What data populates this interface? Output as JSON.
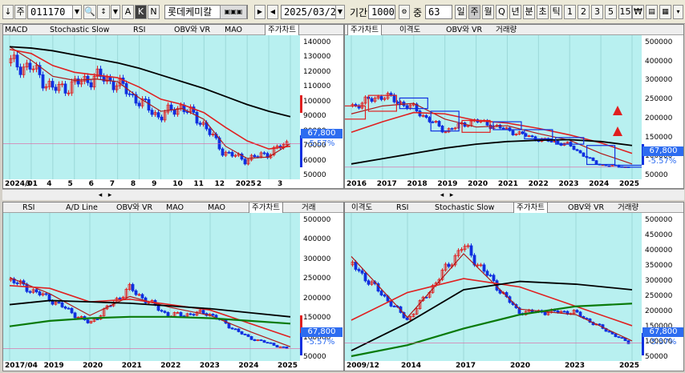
{
  "toolbar": {
    "arrow_label": "↓",
    "ju_label": "주",
    "code": "011170",
    "search_icon": "magnifier-icon",
    "letters": [
      "A",
      "K",
      "N"
    ],
    "name": "롯데케미칼",
    "date": "2025/03/28",
    "period_label": "기간",
    "period": "1000",
    "weight_label": "중",
    "weight": "63",
    "timeframes": [
      "일",
      "주",
      "월",
      "Q",
      "년",
      "분",
      "초",
      "틱",
      "1",
      "2",
      "3",
      "5",
      "15"
    ],
    "currency_icon": "₩"
  },
  "panels": [
    {
      "id": "p1",
      "tabs": [
        "MACD",
        "Stochastic Slow",
        "RSI",
        "OBV와 VR",
        "MAO",
        "주가차트"
      ],
      "active_tab": "주가차트",
      "yticks": [
        "140000",
        "130000",
        "120000",
        "110000",
        "100000",
        "90000",
        "80000",
        "70000",
        "60000",
        "50000"
      ],
      "xticks": [
        "2024/01",
        "3",
        "4",
        "5",
        "6",
        "7",
        "8",
        "9",
        "10",
        "11",
        "12",
        "2025",
        "2",
        "3"
      ],
      "price": "67,800",
      "pct": "-5.57%",
      "ghost": "77,800",
      "chart_data": {
        "type": "candlestick",
        "ylim": [
          45000,
          145000
        ],
        "x": [
          "2024/01",
          "3",
          "4",
          "5",
          "6",
          "7",
          "8",
          "9",
          "10",
          "11",
          "12",
          "2025",
          "2",
          "3"
        ],
        "close": [
          128000,
          124000,
          108000,
          112000,
          118000,
          113000,
          100000,
          88000,
          96000,
          84000,
          62000,
          56000,
          60000,
          67800
        ],
        "series": [
          {
            "values": [
              140000,
              130000,
              118000,
              115000,
              116000,
              114000,
              102000,
              92000,
              94000,
              86000,
              66000,
              57000,
              58000,
              68000
            ]
          },
          {
            "values": [
              138000,
              135000,
              126000,
              121000,
              119000,
              117000,
              110000,
              101000,
              97000,
              91000,
              80000,
              70000,
              64000,
              66000
            ]
          },
          {
            "values": [
              140000,
              139000,
              137000,
              134000,
              131000,
              128000,
              124000,
              119000,
              114000,
              109000,
              103000,
              97000,
              92000,
              88000
            ]
          }
        ]
      }
    },
    {
      "id": "p2",
      "tabs": [
        "주가차트",
        "이격도",
        "OBV와 VR",
        "거래량"
      ],
      "active_tab": "주가차트",
      "yticks": [
        "500000",
        "400000",
        "300000",
        "250000",
        "200000",
        "150000",
        "100000",
        "50000"
      ],
      "xticks": [
        "2016",
        "2017",
        "2018",
        "2019",
        "2020",
        "2021",
        "2022",
        "2023",
        "2024",
        "2025"
      ],
      "price": "67,800",
      "pct": "-5.57%",
      "chart_data": {
        "type": "candlestick",
        "ylim": [
          40000,
          550000
        ],
        "x": [
          "2016",
          "2017",
          "2018",
          "2019",
          "2020",
          "2021",
          "2022",
          "2023",
          "2024",
          "2025"
        ],
        "open": [
          250000,
          280000,
          330000,
          280000,
          200000,
          240000,
          210000,
          180000,
          150000,
          75000
        ],
        "close": [
          300000,
          340000,
          290000,
          205000,
          245000,
          210000,
          175000,
          155000,
          78000,
          67800
        ],
        "series": [
          {
            "values": [
              270000,
              300000,
              310000,
              250000,
              220000,
              225000,
              195000,
              170000,
              120000,
              80000
            ]
          },
          {
            "values": [
              200000,
              240000,
              275000,
              270000,
              245000,
              235000,
              215000,
              190000,
              160000,
              120000
            ]
          },
          {
            "values": [
              80000,
              100000,
              120000,
              140000,
              155000,
              165000,
              170000,
              172000,
              165000,
              150000
            ]
          }
        ]
      }
    },
    {
      "id": "p3",
      "tabs": [
        "RSI",
        "A/D Line",
        "OBV와 VR",
        "MAO",
        "MAO",
        "주가차트",
        "거래"
      ],
      "active_tab": "주가차트",
      "yticks": [
        "500000",
        "400000",
        "300000",
        "250000",
        "200000",
        "150000",
        "100000",
        "50000"
      ],
      "xticks": [
        "2017/04",
        "2019",
        "2020",
        "2021",
        "2022",
        "2023",
        "2024",
        "2025"
      ],
      "price": "67,800",
      "pct": "-5.57%",
      "chart_data": {
        "type": "candlestick",
        "ylim": [
          40000,
          550000
        ],
        "x": [
          "2017/04",
          "2019",
          "2020",
          "2021",
          "2022",
          "2023",
          "2024",
          "2025"
        ],
        "close": [
          320000,
          250000,
          160000,
          290000,
          190000,
          200000,
          110000,
          67800
        ],
        "series": [
          {
            "values": [
              330000,
              270000,
              190000,
              260000,
              220000,
              190000,
              130000,
              75000
            ]
          },
          {
            "values": [
              300000,
              290000,
              240000,
              250000,
              230000,
              210000,
              160000,
              110000
            ]
          },
          {
            "values": [
              230000,
              245000,
              240000,
              235000,
              225000,
              215000,
              200000,
              185000
            ]
          },
          {
            "values": [
              150000,
              170000,
              180000,
              185000,
              185000,
              180000,
              170000,
              160000
            ]
          }
        ]
      }
    },
    {
      "id": "p4",
      "tabs": [
        "이격도",
        "RSI",
        "Stochastic Slow",
        "주가차트",
        "OBV와 VR",
        "거래량"
      ],
      "active_tab": "주가차트",
      "yticks": [
        "500000",
        "450000",
        "400000",
        "350000",
        "300000",
        "250000",
        "200000",
        "150000",
        "100000",
        "50000"
      ],
      "xticks": [
        "2009/12",
        "2014",
        "2017",
        "2020",
        "2023",
        "2025"
      ],
      "price": "67,800",
      "pct": "-5.57%",
      "chart_data": {
        "type": "candlestick",
        "ylim": [
          20000,
          520000
        ],
        "x": [
          "2009/12",
          "2014",
          "2017",
          "2020",
          "2023",
          "2025"
        ],
        "close": [
          350000,
          150000,
          420000,
          180000,
          180000,
          67800
        ],
        "series": [
          {
            "values": [
              380000,
              160000,
              390000,
              190000,
              170000,
              75000
            ]
          },
          {
            "values": [
              150000,
              250000,
              300000,
              270000,
              200000,
              130000
            ]
          },
          {
            "values": [
              40000,
              140000,
              260000,
              290000,
              280000,
              260000
            ]
          },
          {
            "values": [
              20000,
              60000,
              120000,
              170000,
              200000,
              210000
            ]
          }
        ]
      }
    }
  ],
  "scroll": {
    "icons": [
      "scroll-left-icon",
      "scroll-right-icon"
    ],
    "zoom": "1:1"
  },
  "colors": {
    "plot_bg": "#b8f0f0",
    "up": "#e02020",
    "down": "#1030e0",
    "price_bg": "#2d6cf0"
  }
}
